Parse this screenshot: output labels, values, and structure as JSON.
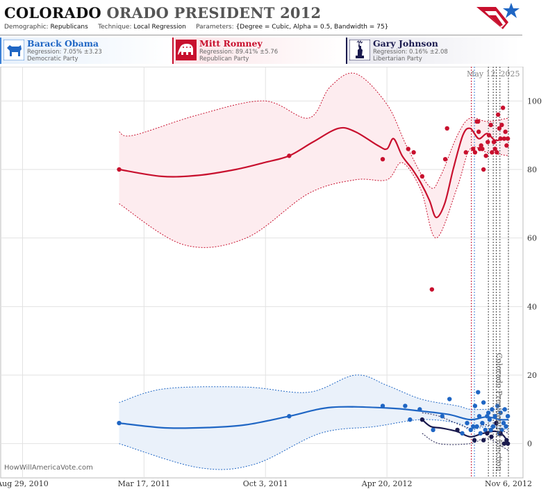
{
  "header": {
    "title_state": "COLORADO",
    "title_rest": "ORADO PRESIDENT 2012",
    "demographic_label": "Demographic:",
    "demographic_value": "Republicans",
    "technique_label": "Technique:",
    "technique_value": "Local Regression",
    "parameters_label": "Parameters:",
    "parameters_value": "{Degree = Cubic, Alpha = 0.5, Bandwidth = 75}"
  },
  "candidates": [
    {
      "name": "Barack Obama",
      "regression": "Regression: 7.05% ±3.23",
      "party": "Democratic Party",
      "color": "#1f66c4",
      "icon": "donkey-icon"
    },
    {
      "name": "Mitt Romney",
      "regression": "Regression: 89.41% ±5.76",
      "party": "Republican Party",
      "color": "#c8102e",
      "icon": "elephant-icon"
    },
    {
      "name": "Gary Johnson",
      "regression": "Regression: 0.16% ±2.08",
      "party": "Libertarian Party",
      "color": "#1a1a4e",
      "icon": "liberty-icon"
    }
  ],
  "watermark": "HowWillAmericaVote.com",
  "date_stamp": "May 12, 2025",
  "election_label": "Colorado Presidential Election",
  "chart_data": {
    "type": "scatter",
    "x_type": "date",
    "xlim": [
      "2010-07-24",
      "2012-11-30"
    ],
    "ylim": [
      -10,
      110
    ],
    "grid": true,
    "x_ticks": [
      {
        "date": "2010-08-29",
        "label": "Aug 29, 2010"
      },
      {
        "date": "2011-03-17",
        "label": "Mar 17, 2011"
      },
      {
        "date": "2011-10-03",
        "label": "Oct 3, 2011"
      },
      {
        "date": "2012-04-20",
        "label": "Apr 20, 2012"
      },
      {
        "date": "2012-11-06",
        "label": "Nov 6, 2012"
      }
    ],
    "y_ticks": [
      0,
      20,
      40,
      60,
      80,
      100
    ],
    "vertical_markers": [
      {
        "date": "2012-09-06",
        "color": "#c8102e"
      },
      {
        "date": "2012-09-11",
        "color": "#3a7fd5"
      },
      {
        "date": "2012-10-04",
        "color": "#444"
      },
      {
        "date": "2012-10-12",
        "color": "#444"
      },
      {
        "date": "2012-10-17",
        "color": "#444"
      },
      {
        "date": "2012-10-23",
        "color": "#444"
      },
      {
        "date": "2012-11-06",
        "color": "#444"
      }
    ],
    "series": [
      {
        "name": "Mitt Romney",
        "color": "#c8102e",
        "band_fill": "#fdecef",
        "points": [
          [
            "2011-02-04",
            80
          ],
          [
            "2011-11-11",
            84
          ],
          [
            "2012-04-13",
            83
          ],
          [
            "2012-05-25",
            86
          ],
          [
            "2012-06-03",
            85
          ],
          [
            "2012-06-17",
            78
          ],
          [
            "2012-07-03",
            45
          ],
          [
            "2012-07-25",
            83
          ],
          [
            "2012-07-28",
            92
          ],
          [
            "2012-08-28",
            85
          ],
          [
            "2012-09-09",
            86
          ],
          [
            "2012-09-12",
            85
          ],
          [
            "2012-09-15",
            94
          ],
          [
            "2012-09-17",
            94
          ],
          [
            "2012-09-18",
            91
          ],
          [
            "2012-09-20",
            86
          ],
          [
            "2012-09-22",
            87
          ],
          [
            "2012-09-24",
            86
          ],
          [
            "2012-09-26",
            80
          ],
          [
            "2012-09-30",
            84
          ],
          [
            "2012-10-03",
            88
          ],
          [
            "2012-10-05",
            90
          ],
          [
            "2012-10-08",
            93
          ],
          [
            "2012-10-10",
            85
          ],
          [
            "2012-10-13",
            88
          ],
          [
            "2012-10-15",
            86
          ],
          [
            "2012-10-18",
            85
          ],
          [
            "2012-10-20",
            96
          ],
          [
            "2012-10-22",
            92
          ],
          [
            "2012-10-24",
            89
          ],
          [
            "2012-10-26",
            93
          ],
          [
            "2012-10-28",
            98
          ],
          [
            "2012-10-30",
            89
          ],
          [
            "2012-11-01",
            91
          ],
          [
            "2012-11-03",
            87
          ],
          [
            "2012-11-05",
            89
          ]
        ],
        "trend": [
          [
            "2011-02-04",
            80.0
          ],
          [
            "2011-04-15",
            78.0
          ],
          [
            "2011-06-15",
            78.3
          ],
          [
            "2011-08-15",
            80.0
          ],
          [
            "2011-10-01",
            82.0
          ],
          [
            "2011-11-11",
            84.0
          ],
          [
            "2011-12-20",
            88.0
          ],
          [
            "2012-01-31",
            92.0
          ],
          [
            "2012-02-28",
            91.0
          ],
          [
            "2012-04-05",
            87.0
          ],
          [
            "2012-04-20",
            86.0
          ],
          [
            "2012-05-01",
            89.0
          ],
          [
            "2012-05-15",
            84.0
          ],
          [
            "2012-06-01",
            80.0
          ],
          [
            "2012-06-15",
            76.0
          ],
          [
            "2012-06-29",
            71.0
          ],
          [
            "2012-07-10",
            66.0
          ],
          [
            "2012-07-24",
            70.0
          ],
          [
            "2012-08-07",
            80.0
          ],
          [
            "2012-08-23",
            90.0
          ],
          [
            "2012-09-04",
            92.0
          ],
          [
            "2012-09-18",
            89.0
          ],
          [
            "2012-10-02",
            90.5
          ],
          [
            "2012-10-15",
            88.5
          ],
          [
            "2012-10-28",
            89.0
          ],
          [
            "2012-11-06",
            89.4
          ]
        ],
        "upper": [
          [
            "2011-02-04",
            91
          ],
          [
            "2011-02-28",
            90
          ],
          [
            "2011-06-15",
            96
          ],
          [
            "2011-10-01",
            100
          ],
          [
            "2011-12-13",
            95
          ],
          [
            "2012-01-17",
            104
          ],
          [
            "2012-02-28",
            108
          ],
          [
            "2012-04-20",
            99
          ],
          [
            "2012-05-22",
            87
          ],
          [
            "2012-06-29",
            75
          ],
          [
            "2012-07-17",
            78
          ],
          [
            "2012-08-14",
            90
          ],
          [
            "2012-09-04",
            95
          ],
          [
            "2012-10-02",
            94
          ],
          [
            "2012-11-06",
            95
          ]
        ],
        "lower": [
          [
            "2011-02-04",
            70
          ],
          [
            "2011-05-22",
            58
          ],
          [
            "2011-09-01",
            60
          ],
          [
            "2011-12-13",
            73
          ],
          [
            "2012-02-28",
            77
          ],
          [
            "2012-04-20",
            77
          ],
          [
            "2012-05-15",
            82
          ],
          [
            "2012-06-15",
            74
          ],
          [
            "2012-07-10",
            60
          ],
          [
            "2012-08-14",
            75
          ],
          [
            "2012-09-04",
            86
          ],
          [
            "2012-10-02",
            85
          ],
          [
            "2012-11-06",
            84
          ]
        ]
      },
      {
        "name": "Barack Obama",
        "color": "#1f66c4",
        "band_fill": "#eaf1fa",
        "points": [
          [
            "2011-02-04",
            6
          ],
          [
            "2011-11-11",
            8
          ],
          [
            "2012-04-13",
            11
          ],
          [
            "2012-05-20",
            11
          ],
          [
            "2012-05-28",
            7
          ],
          [
            "2012-06-13",
            10
          ],
          [
            "2012-07-05",
            4
          ],
          [
            "2012-07-20",
            8
          ],
          [
            "2012-08-01",
            13
          ],
          [
            "2012-08-22",
            3
          ],
          [
            "2012-08-30",
            6
          ],
          [
            "2012-09-05",
            4
          ],
          [
            "2012-09-09",
            5
          ],
          [
            "2012-09-12",
            11
          ],
          [
            "2012-09-15",
            5
          ],
          [
            "2012-09-17",
            15
          ],
          [
            "2012-09-19",
            8
          ],
          [
            "2012-09-21",
            3
          ],
          [
            "2012-09-24",
            6
          ],
          [
            "2012-09-26",
            12
          ],
          [
            "2012-09-29",
            4
          ],
          [
            "2012-10-02",
            8
          ],
          [
            "2012-10-04",
            9
          ],
          [
            "2012-10-06",
            7
          ],
          [
            "2012-10-08",
            4
          ],
          [
            "2012-10-10",
            10
          ],
          [
            "2012-10-12",
            5
          ],
          [
            "2012-10-15",
            8
          ],
          [
            "2012-10-17",
            6
          ],
          [
            "2012-10-19",
            11
          ],
          [
            "2012-10-22",
            3
          ],
          [
            "2012-10-24",
            9
          ],
          [
            "2012-10-26",
            4
          ],
          [
            "2012-10-29",
            6
          ],
          [
            "2012-10-31",
            10
          ],
          [
            "2012-11-02",
            5
          ],
          [
            "2012-11-05",
            8
          ]
        ],
        "trend": [
          [
            "2011-02-04",
            6.0
          ],
          [
            "2011-04-20",
            4.6
          ],
          [
            "2011-07-01",
            4.7
          ],
          [
            "2011-09-01",
            5.5
          ],
          [
            "2011-11-11",
            8.0
          ],
          [
            "2012-01-20",
            10.6
          ],
          [
            "2012-04-20",
            10.4
          ],
          [
            "2012-06-15",
            9.5
          ],
          [
            "2012-07-31",
            8.5
          ],
          [
            "2012-09-04",
            7.0
          ],
          [
            "2012-10-01",
            7.8
          ],
          [
            "2012-10-24",
            7.0
          ],
          [
            "2012-11-06",
            7.0
          ]
        ],
        "upper": [
          [
            "2011-02-04",
            12
          ],
          [
            "2011-04-20",
            16
          ],
          [
            "2011-09-01",
            16.5
          ],
          [
            "2011-12-13",
            15
          ],
          [
            "2012-02-28",
            20
          ],
          [
            "2012-04-20",
            17
          ],
          [
            "2012-06-15",
            13
          ],
          [
            "2012-08-14",
            11
          ],
          [
            "2012-09-04",
            10
          ],
          [
            "2012-10-02",
            10
          ],
          [
            "2012-11-06",
            10
          ]
        ],
        "lower": [
          [
            "2011-02-04",
            0
          ],
          [
            "2011-06-15",
            -7
          ],
          [
            "2011-09-15",
            -6
          ],
          [
            "2012-01-01",
            3
          ],
          [
            "2012-04-01",
            5
          ],
          [
            "2012-06-15",
            7
          ],
          [
            "2012-08-14",
            6
          ],
          [
            "2012-09-04",
            4
          ],
          [
            "2012-10-02",
            5
          ],
          [
            "2012-11-06",
            4
          ]
        ]
      },
      {
        "name": "Gary Johnson",
        "color": "#1a1a4e",
        "points": [
          [
            "2012-06-17",
            7
          ],
          [
            "2012-08-14",
            4
          ],
          [
            "2012-09-11",
            1
          ],
          [
            "2012-09-26",
            1
          ],
          [
            "2012-10-02",
            3
          ],
          [
            "2012-10-09",
            2
          ],
          [
            "2012-10-17",
            6
          ],
          [
            "2012-10-24",
            3
          ],
          [
            "2012-10-30",
            0
          ],
          [
            "2012-11-03",
            1
          ],
          [
            "2012-11-05",
            0
          ]
        ],
        "trend": [
          [
            "2012-06-17",
            7.0
          ],
          [
            "2012-07-01",
            5.0
          ],
          [
            "2012-07-20",
            4.5
          ],
          [
            "2012-08-14",
            3.5
          ],
          [
            "2012-09-04",
            2.0
          ],
          [
            "2012-09-25",
            3.0
          ],
          [
            "2012-10-15",
            3.6
          ],
          [
            "2012-10-28",
            2.5
          ],
          [
            "2012-11-06",
            0.2
          ]
        ],
        "upper": [
          [
            "2012-06-17",
            9
          ],
          [
            "2012-07-15",
            8
          ],
          [
            "2012-09-04",
            4.5
          ],
          [
            "2012-10-02",
            5.5
          ],
          [
            "2012-11-06",
            3
          ]
        ],
        "lower": [
          [
            "2012-06-17",
            3
          ],
          [
            "2012-07-15",
            0
          ],
          [
            "2012-09-04",
            0
          ],
          [
            "2012-10-02",
            1.5
          ],
          [
            "2012-11-06",
            -2
          ]
        ]
      }
    ]
  }
}
